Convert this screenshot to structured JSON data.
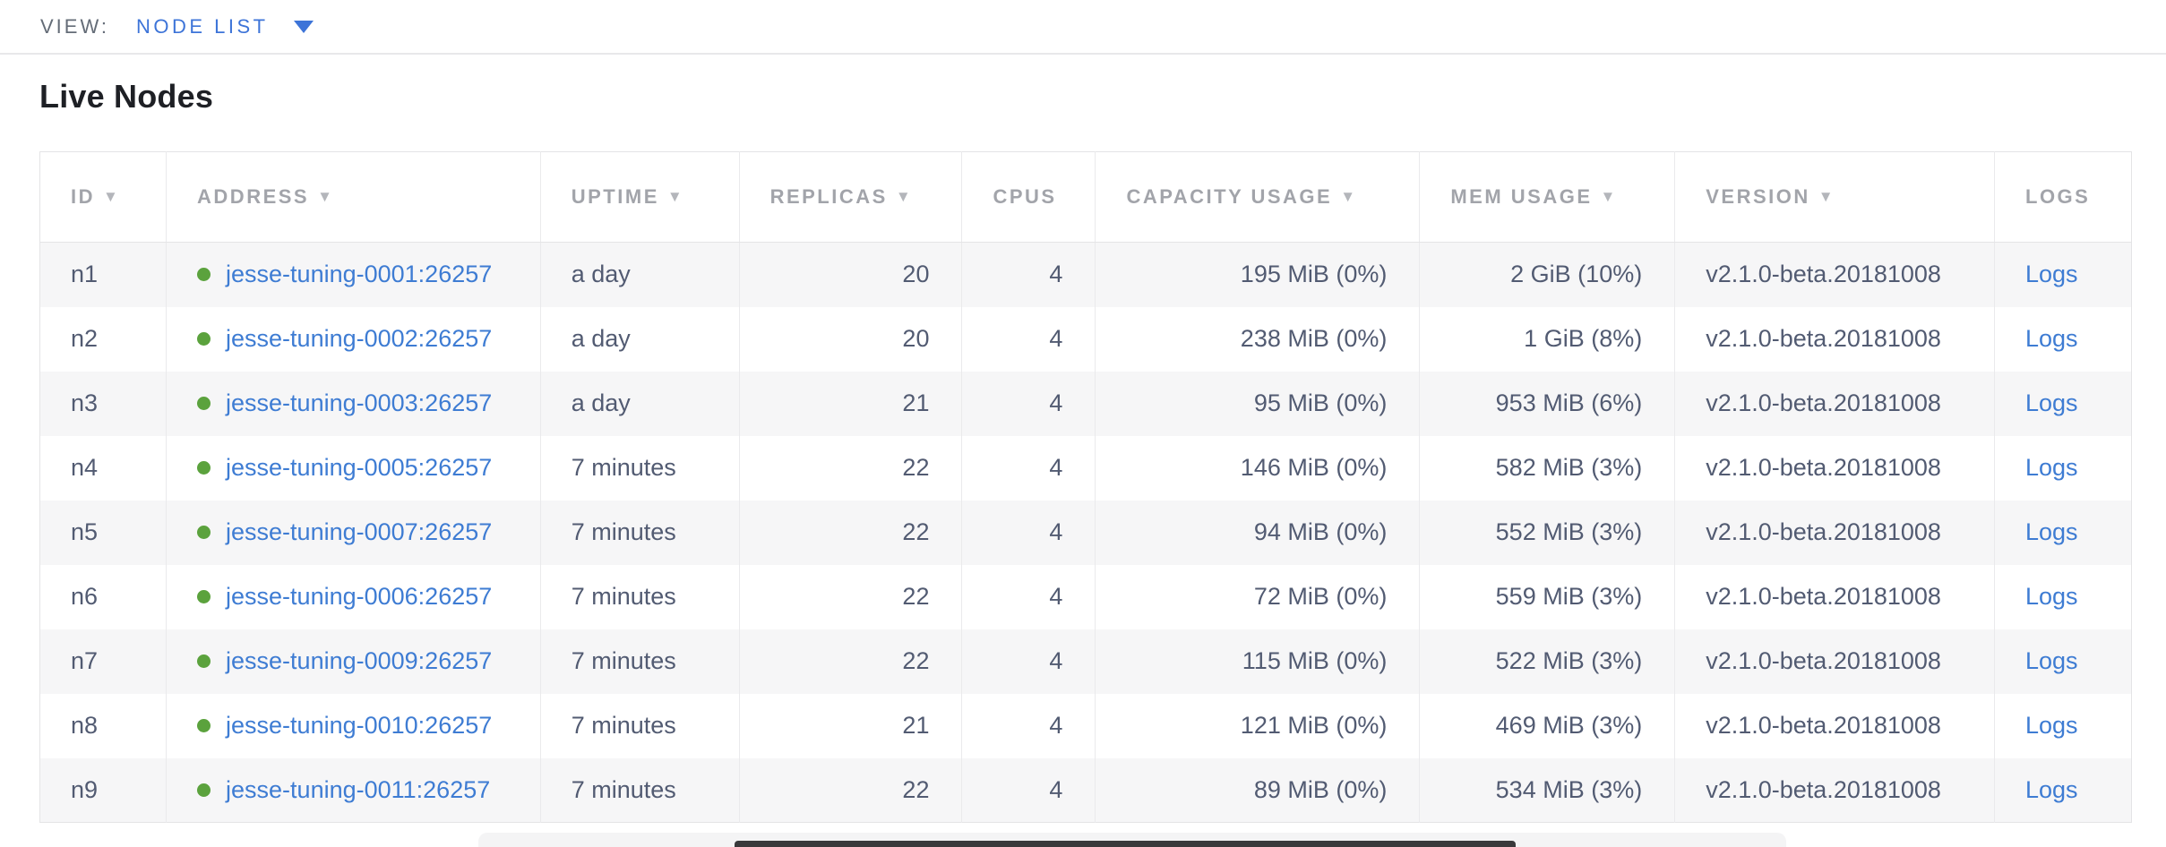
{
  "view_bar": {
    "label": "VIEW:",
    "selected": "NODE LIST"
  },
  "page": {
    "title": "Live Nodes"
  },
  "table": {
    "columns": [
      {
        "label": "ID",
        "arrow": "▼"
      },
      {
        "label": "ADDRESS",
        "arrow": "▼"
      },
      {
        "label": "UPTIME",
        "arrow": "▼"
      },
      {
        "label": "REPLICAS",
        "arrow": "▼"
      },
      {
        "label": "CPUS",
        "arrow": ""
      },
      {
        "label": "CAPACITY USAGE",
        "arrow": "▼"
      },
      {
        "label": "MEM USAGE",
        "arrow": "▼"
      },
      {
        "label": "VERSION",
        "arrow": "▼"
      },
      {
        "label": "LOGS",
        "arrow": ""
      }
    ],
    "rows": [
      {
        "id": "n1",
        "address": "jesse-tuning-0001:26257",
        "uptime": "a day",
        "replicas": "20",
        "cpus": "4",
        "capacity": "195 MiB (0%)",
        "mem": "2 GiB (10%)",
        "version": "v2.1.0-beta.20181008",
        "logs": "Logs"
      },
      {
        "id": "n2",
        "address": "jesse-tuning-0002:26257",
        "uptime": "a day",
        "replicas": "20",
        "cpus": "4",
        "capacity": "238 MiB (0%)",
        "mem": "1 GiB (8%)",
        "version": "v2.1.0-beta.20181008",
        "logs": "Logs"
      },
      {
        "id": "n3",
        "address": "jesse-tuning-0003:26257",
        "uptime": "a day",
        "replicas": "21",
        "cpus": "4",
        "capacity": "95 MiB (0%)",
        "mem": "953 MiB (6%)",
        "version": "v2.1.0-beta.20181008",
        "logs": "Logs"
      },
      {
        "id": "n4",
        "address": "jesse-tuning-0005:26257",
        "uptime": "7 minutes",
        "replicas": "22",
        "cpus": "4",
        "capacity": "146 MiB (0%)",
        "mem": "582 MiB (3%)",
        "version": "v2.1.0-beta.20181008",
        "logs": "Logs"
      },
      {
        "id": "n5",
        "address": "jesse-tuning-0007:26257",
        "uptime": "7 minutes",
        "replicas": "22",
        "cpus": "4",
        "capacity": "94 MiB (0%)",
        "mem": "552 MiB (3%)",
        "version": "v2.1.0-beta.20181008",
        "logs": "Logs"
      },
      {
        "id": "n6",
        "address": "jesse-tuning-0006:26257",
        "uptime": "7 minutes",
        "replicas": "22",
        "cpus": "4",
        "capacity": "72 MiB (0%)",
        "mem": "559 MiB (3%)",
        "version": "v2.1.0-beta.20181008",
        "logs": "Logs"
      },
      {
        "id": "n7",
        "address": "jesse-tuning-0009:26257",
        "uptime": "7 minutes",
        "replicas": "22",
        "cpus": "4",
        "capacity": "115 MiB (0%)",
        "mem": "522 MiB (3%)",
        "version": "v2.1.0-beta.20181008",
        "logs": "Logs"
      },
      {
        "id": "n8",
        "address": "jesse-tuning-0010:26257",
        "uptime": "7 minutes",
        "replicas": "21",
        "cpus": "4",
        "capacity": "121 MiB (0%)",
        "mem": "469 MiB (3%)",
        "version": "v2.1.0-beta.20181008",
        "logs": "Logs"
      },
      {
        "id": "n9",
        "address": "jesse-tuning-0011:26257",
        "uptime": "7 minutes",
        "replicas": "22",
        "cpus": "4",
        "capacity": "89 MiB (0%)",
        "mem": "534 MiB (3%)",
        "version": "v2.1.0-beta.20181008",
        "logs": "Logs"
      }
    ]
  },
  "colors": {
    "accent_blue": "#3d74d8",
    "link_blue": "#3e7cd3",
    "status_green": "#5ba23d",
    "header_gray": "#a2a4aa",
    "body_text": "#525b72",
    "row_stripe": "#f6f6f7",
    "border": "#e4e4e6"
  }
}
